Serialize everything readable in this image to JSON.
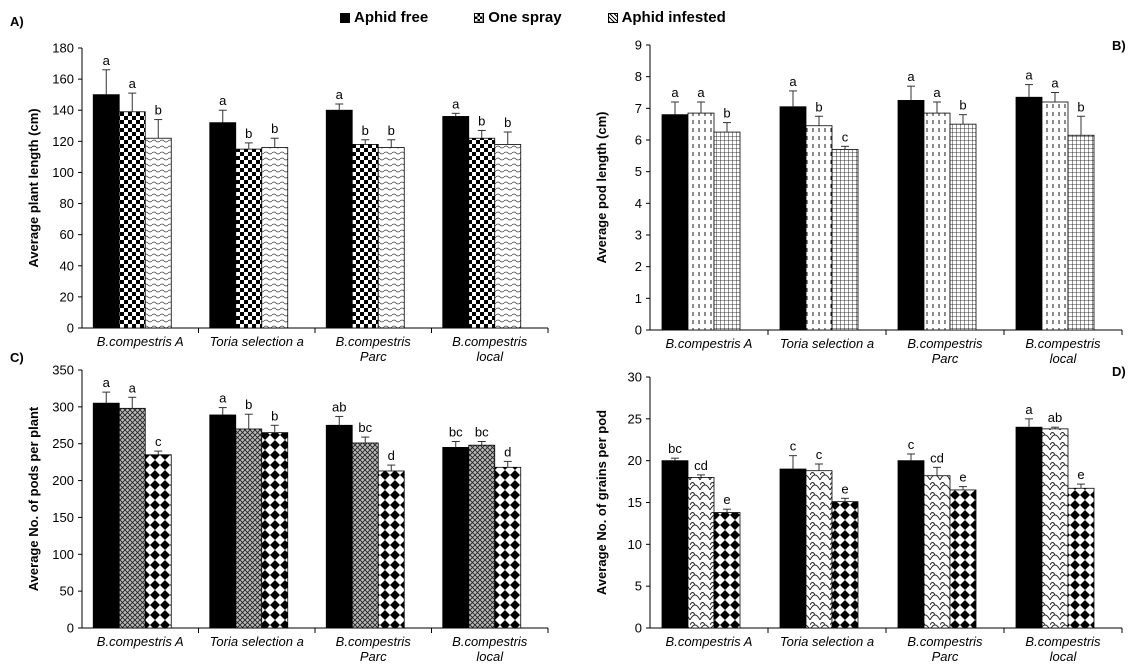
{
  "legend": {
    "aphid_free": "Aphid free",
    "one_spray": "One spray",
    "aphid_infested": "Aphid infested"
  },
  "colors": {
    "aphid_free": "#000000",
    "patterned_fill": "#ffffff",
    "axis": "#000000",
    "error_bar": "#333333"
  },
  "chart_data": [
    {
      "panel": "A)",
      "type": "bar",
      "ylabel": "Average plant length (cm)",
      "ylim": [
        0,
        180
      ],
      "ytick_step": 20,
      "categories": [
        [
          "B.compestris A"
        ],
        [
          "Toria selection a"
        ],
        [
          "B.compestris",
          "Parc"
        ],
        [
          "B.compestris",
          "local"
        ]
      ],
      "series": [
        {
          "name": "Aphid free",
          "values": [
            150,
            132,
            140,
            136
          ],
          "errors": [
            16,
            8,
            4,
            2
          ],
          "letters": [
            "a",
            "a",
            "a",
            "a"
          ]
        },
        {
          "name": "One spray",
          "values": [
            139,
            115,
            118,
            122
          ],
          "errors": [
            12,
            4,
            3,
            5
          ],
          "letters": [
            "a",
            "b",
            "b",
            "b"
          ]
        },
        {
          "name": "Aphid infested",
          "values": [
            122,
            116,
            116,
            118
          ],
          "errors": [
            12,
            6,
            5,
            8
          ],
          "letters": [
            "b",
            "b",
            "b",
            "b"
          ]
        }
      ]
    },
    {
      "panel": "B)",
      "type": "bar",
      "ylabel": "Average pod length (cm)",
      "ylim": [
        0,
        9
      ],
      "ytick_step": 1,
      "categories": [
        [
          "B.compestris A"
        ],
        [
          "Toria selection a"
        ],
        [
          "B.compestris",
          "Parc"
        ],
        [
          "B.compestris",
          "local"
        ]
      ],
      "series": [
        {
          "name": "Aphid free",
          "values": [
            6.8,
            7.05,
            7.25,
            7.35
          ],
          "errors": [
            0.4,
            0.5,
            0.45,
            0.4
          ],
          "letters": [
            "a",
            "a",
            "a",
            "a"
          ]
        },
        {
          "name": "One spray",
          "values": [
            6.85,
            6.45,
            6.85,
            7.2
          ],
          "errors": [
            0.35,
            0.3,
            0.35,
            0.3
          ],
          "letters": [
            "a",
            "b",
            "a",
            "a"
          ]
        },
        {
          "name": "Aphid infested",
          "values": [
            6.25,
            5.7,
            6.5,
            6.15
          ],
          "errors": [
            0.3,
            0.1,
            0.3,
            0.6
          ],
          "letters": [
            "b",
            "c",
            "b",
            "b"
          ]
        }
      ]
    },
    {
      "panel": "C)",
      "type": "bar",
      "ylabel": "Average No. of pods per plant",
      "ylim": [
        0,
        350
      ],
      "ytick_step": 50,
      "categories": [
        [
          "B.compestris A"
        ],
        [
          "Toria selection a"
        ],
        [
          "B.compestris",
          "Parc"
        ],
        [
          "B.compestris",
          "local"
        ]
      ],
      "series": [
        {
          "name": "Aphid free",
          "values": [
            305,
            289,
            275,
            245
          ],
          "errors": [
            15,
            10,
            12,
            8
          ],
          "letters": [
            "a",
            "a",
            "ab",
            "bc"
          ]
        },
        {
          "name": "One spray",
          "values": [
            298,
            270,
            251,
            248
          ],
          "errors": [
            15,
            20,
            8,
            5
          ],
          "letters": [
            "a",
            "b",
            "bc",
            "bc"
          ]
        },
        {
          "name": "Aphid infested",
          "values": [
            235,
            265,
            213,
            218
          ],
          "errors": [
            5,
            10,
            8,
            8
          ],
          "letters": [
            "c",
            "b",
            "d",
            "d"
          ]
        }
      ]
    },
    {
      "panel": "D)",
      "type": "bar",
      "ylabel": "Average No. of grains per  pod",
      "ylim": [
        0,
        30
      ],
      "ytick_step": 5,
      "categories": [
        [
          "B.compestris A"
        ],
        [
          "Toria selection a"
        ],
        [
          "B.compestris",
          "Parc"
        ],
        [
          "B.compestris",
          "local"
        ]
      ],
      "series": [
        {
          "name": "Aphid free",
          "values": [
            20,
            19,
            20,
            24
          ],
          "errors": [
            0.3,
            1.6,
            0.8,
            1
          ],
          "letters": [
            "bc",
            "c",
            "c",
            "a"
          ]
        },
        {
          "name": "One spray",
          "values": [
            18,
            18.8,
            18.2,
            23.8
          ],
          "errors": [
            0.3,
            0.8,
            1,
            0.2
          ],
          "letters": [
            "cd",
            "c",
            "cd",
            "ab"
          ]
        },
        {
          "name": "Aphid infested",
          "values": [
            13.8,
            15.1,
            16.5,
            16.7
          ],
          "errors": [
            0.4,
            0.4,
            0.4,
            0.5
          ],
          "letters": [
            "e",
            "e",
            "e",
            "e"
          ]
        }
      ]
    }
  ]
}
